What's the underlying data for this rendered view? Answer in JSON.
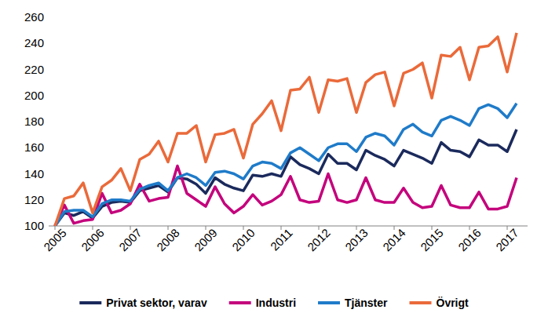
{
  "chart_data": {
    "type": "line",
    "categories": [
      "2005",
      null,
      null,
      null,
      "2006",
      null,
      null,
      null,
      "2007",
      null,
      null,
      null,
      "2008",
      null,
      null,
      null,
      "2009",
      null,
      null,
      null,
      "2010",
      null,
      null,
      null,
      "2011",
      null,
      null,
      null,
      "2012",
      null,
      null,
      null,
      "2013",
      null,
      null,
      null,
      "2014",
      null,
      null,
      null,
      "2015",
      null,
      null,
      null,
      "2016",
      null,
      null,
      null,
      "2017",
      null
    ],
    "series": [
      {
        "name": "Privat sektor, varav",
        "color": "#1b2a5c",
        "values": [
          100,
          110,
          108,
          111,
          106,
          115,
          118,
          119,
          118,
          127,
          129,
          131,
          126,
          137,
          136,
          132,
          125,
          137,
          132,
          129,
          127,
          139,
          138,
          140,
          138,
          153,
          147,
          144,
          140,
          155,
          148,
          148,
          143,
          158,
          154,
          151,
          146,
          158,
          155,
          152,
          148,
          164,
          158,
          157,
          153,
          166,
          162,
          162,
          157,
          174
        ]
      },
      {
        "name": "Industri",
        "color": "#c4007c",
        "values": [
          100,
          116,
          102,
          104,
          105,
          125,
          110,
          112,
          117,
          132,
          119,
          121,
          122,
          146,
          125,
          120,
          115,
          130,
          117,
          110,
          115,
          124,
          116,
          119,
          124,
          138,
          120,
          118,
          119,
          140,
          120,
          118,
          120,
          137,
          120,
          118,
          118,
          129,
          118,
          114,
          115,
          131,
          116,
          114,
          114,
          126,
          113,
          113,
          115,
          137
        ]
      },
      {
        "name": "Tjänster",
        "color": "#1f7bc9",
        "values": [
          100,
          111,
          112,
          112,
          107,
          117,
          120,
          120,
          119,
          128,
          131,
          133,
          127,
          137,
          140,
          137,
          131,
          141,
          142,
          140,
          136,
          146,
          149,
          148,
          144,
          156,
          160,
          155,
          150,
          160,
          163,
          163,
          157,
          168,
          171,
          169,
          162,
          174,
          178,
          172,
          169,
          181,
          184,
          181,
          177,
          190,
          193,
          190,
          183,
          194
        ]
      },
      {
        "name": "Övrigt",
        "color": "#ea6a3a",
        "values": [
          100,
          121,
          123,
          133,
          110,
          130,
          135,
          144,
          127,
          151,
          155,
          165,
          149,
          171,
          171,
          177,
          149,
          170,
          171,
          174,
          152,
          178,
          186,
          196,
          173,
          204,
          205,
          214,
          187,
          212,
          211,
          213,
          187,
          210,
          216,
          218,
          192,
          217,
          220,
          225,
          198,
          231,
          230,
          237,
          212,
          237,
          238,
          245,
          218,
          248
        ]
      }
    ],
    "ylim": [
      100,
      260
    ],
    "yticks": [
      100,
      120,
      140,
      160,
      180,
      200,
      220,
      240,
      260
    ],
    "grid": false,
    "legend": "bottom"
  }
}
